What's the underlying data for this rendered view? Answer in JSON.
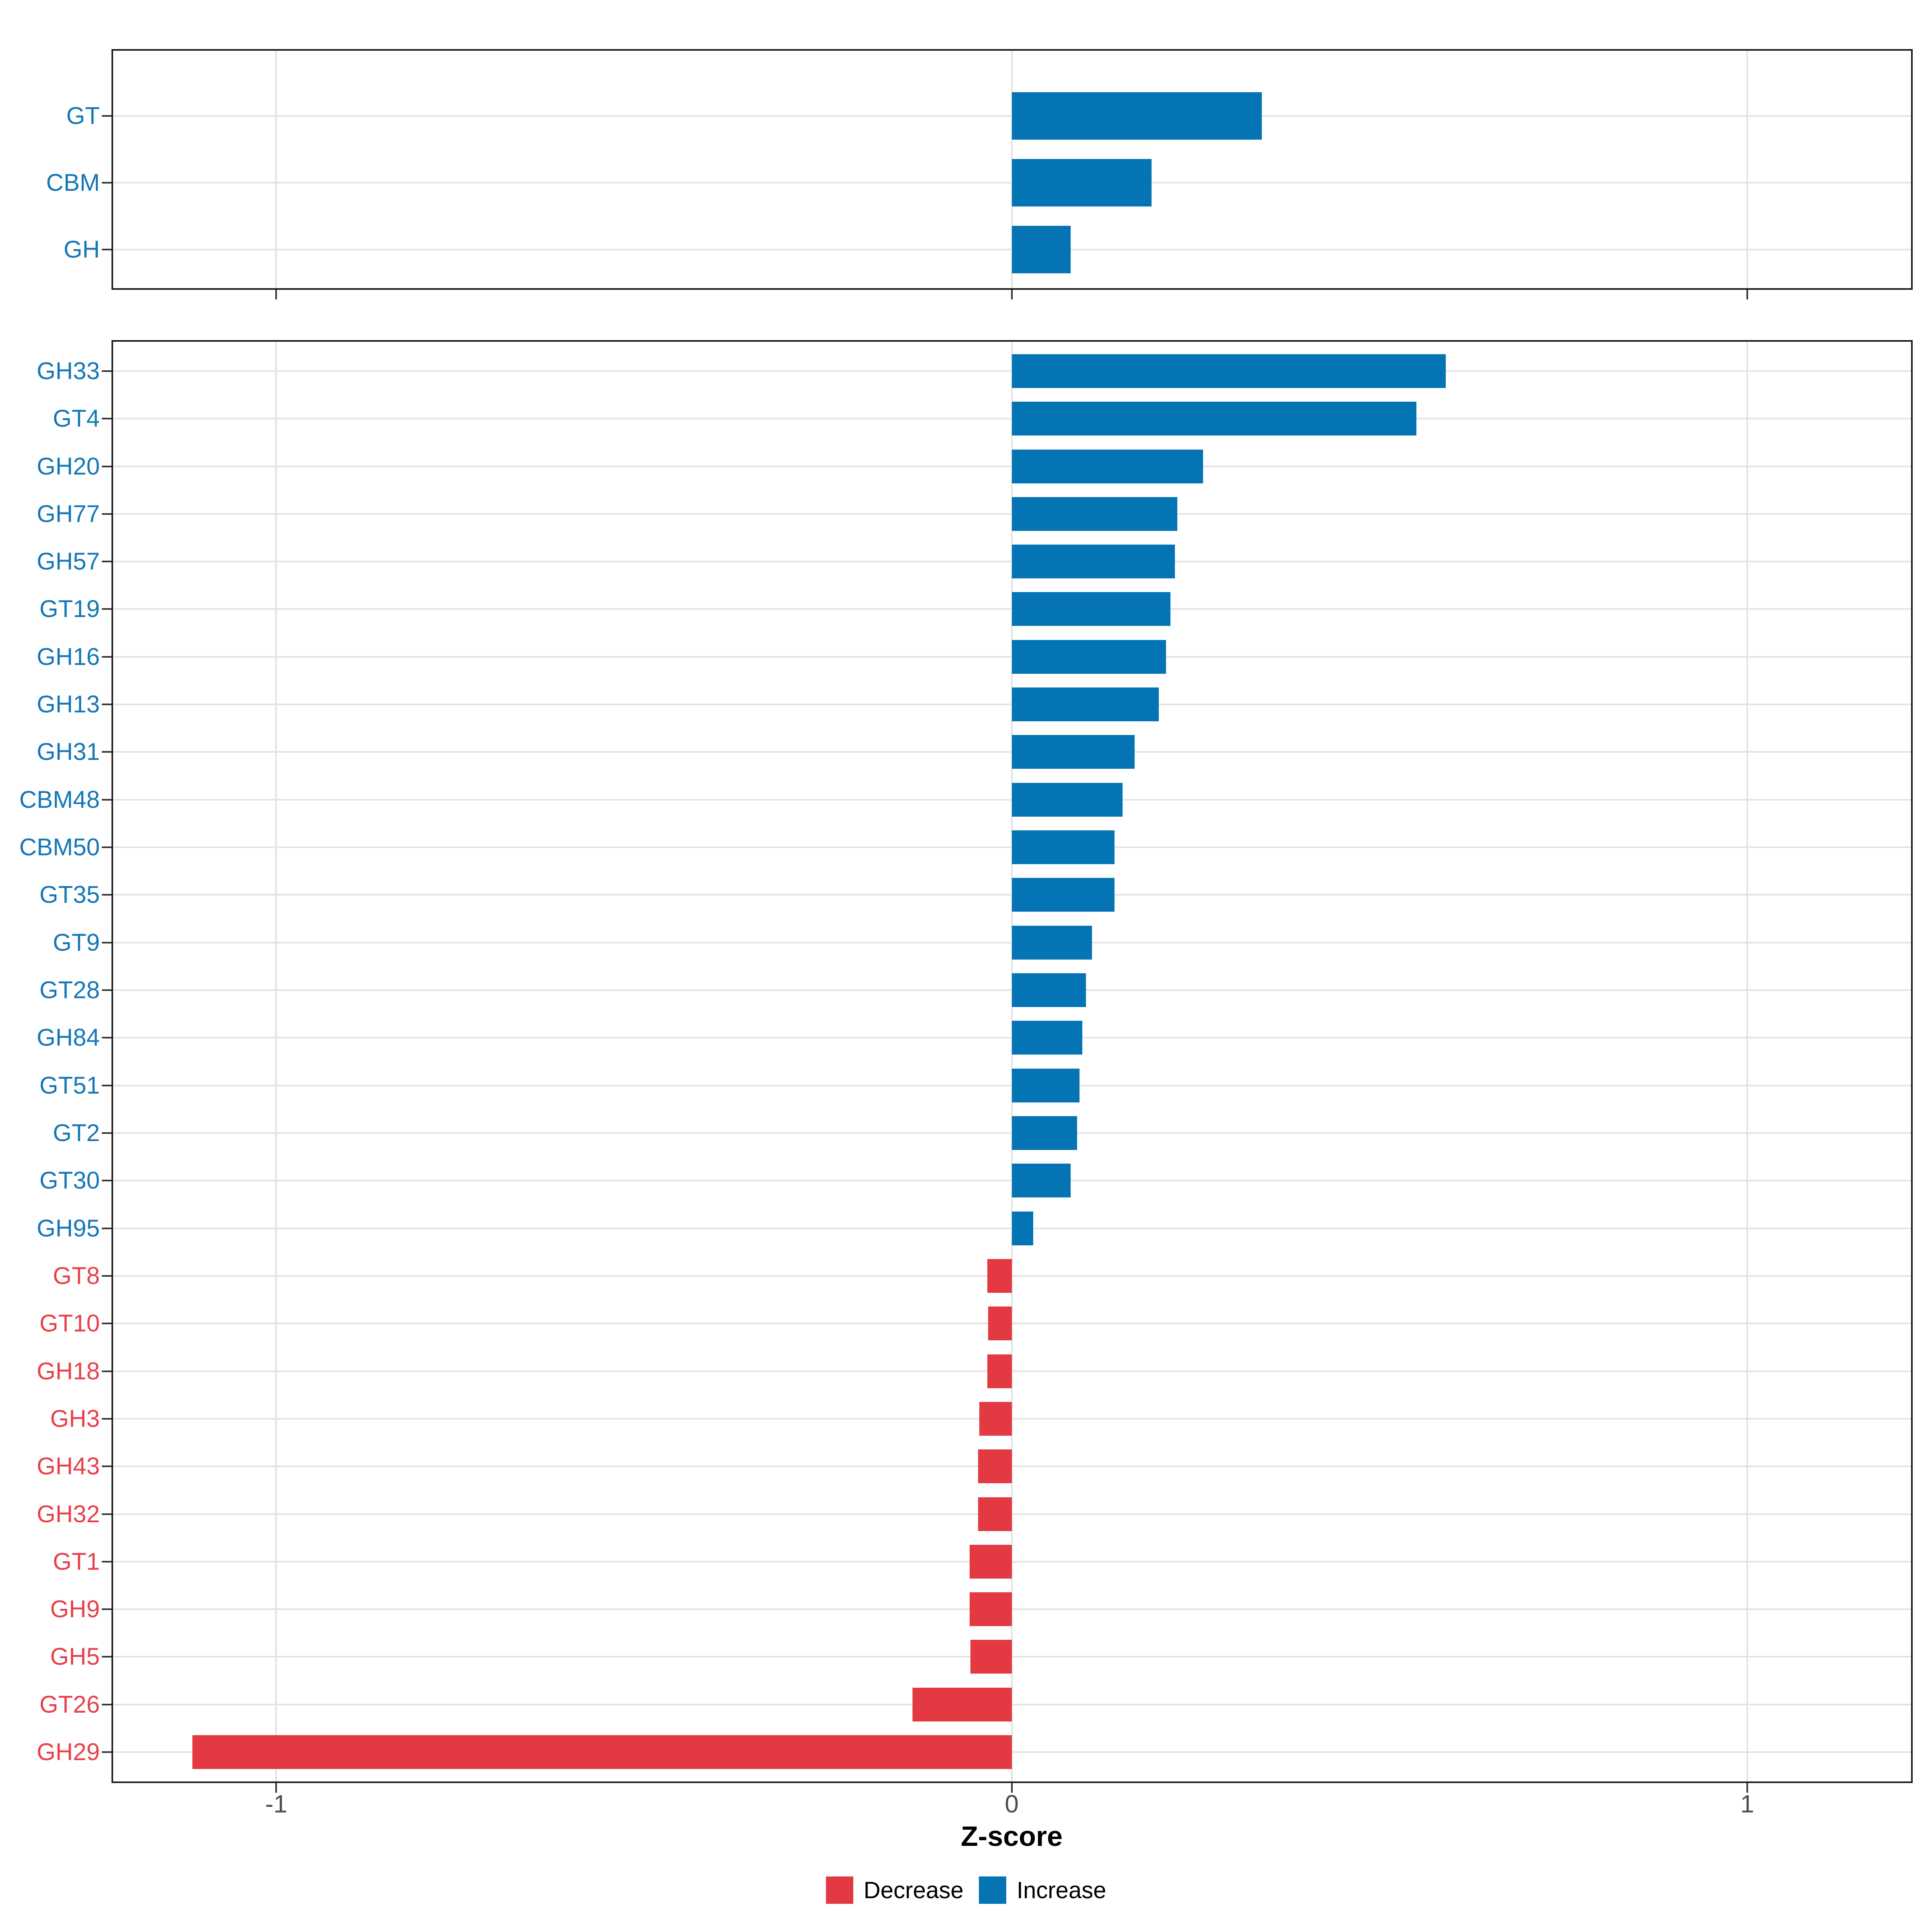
{
  "figure": {
    "xlabel": "Z-score"
  },
  "colors": {
    "increase_bar": "#0574b4",
    "decrease_bar": "#e33943",
    "increase_label": "#1477b7",
    "decrease_label": "#e8404a",
    "grid": "#e3e3e3",
    "panel_border": "#1b1b1b",
    "tick": "#333333",
    "tick_label": "#4d4d4d"
  },
  "chart_data": {
    "type": "bar",
    "orientation": "horizontal",
    "title": "",
    "xlabel": "Z-score",
    "ylabel": "",
    "xlim": [
      -1.224,
      1.225
    ],
    "x_ticks": [
      {
        "value": -1,
        "label": "-1"
      },
      {
        "value": 0,
        "label": "0"
      },
      {
        "value": 1,
        "label": "1"
      }
    ],
    "grid": "major-only",
    "legend_position": "bottom",
    "legend": [
      {
        "label": "Decrease",
        "color": "#e33943"
      },
      {
        "label": "Increase",
        "color": "#0574b4"
      }
    ],
    "panels": [
      {
        "name": "enzyme-classes",
        "categories": [
          "GT",
          "CBM",
          "GH"
        ],
        "values": [
          0.34,
          0.19,
          0.08
        ],
        "directions": [
          "Increase",
          "Increase",
          "Increase"
        ]
      },
      {
        "name": "enzyme-families",
        "categories": [
          "GH33",
          "GT4",
          "GH20",
          "GH77",
          "GH57",
          "GT19",
          "GH16",
          "GH13",
          "GH31",
          "CBM48",
          "CBM50",
          "GT35",
          "GT9",
          "GT28",
          "GH84",
          "GT51",
          "GT2",
          "GT30",
          "GH95",
          "GT8",
          "GT10",
          "GH18",
          "GH3",
          "GH43",
          "GH32",
          "GT1",
          "GH9",
          "GH5",
          "GT26",
          "GH29"
        ],
        "values": [
          0.59,
          0.55,
          0.26,
          0.225,
          0.222,
          0.216,
          0.21,
          0.2,
          0.167,
          0.151,
          0.14,
          0.14,
          0.109,
          0.101,
          0.096,
          0.092,
          0.089,
          0.08,
          0.029,
          -0.033,
          -0.032,
          -0.033,
          -0.044,
          -0.046,
          -0.046,
          -0.057,
          -0.057,
          -0.056,
          -0.135,
          -1.114
        ],
        "directions": [
          "Increase",
          "Increase",
          "Increase",
          "Increase",
          "Increase",
          "Increase",
          "Increase",
          "Increase",
          "Increase",
          "Increase",
          "Increase",
          "Increase",
          "Increase",
          "Increase",
          "Increase",
          "Increase",
          "Increase",
          "Increase",
          "Increase",
          "Decrease",
          "Decrease",
          "Decrease",
          "Decrease",
          "Decrease",
          "Decrease",
          "Decrease",
          "Decrease",
          "Decrease",
          "Decrease",
          "Decrease"
        ]
      }
    ]
  }
}
